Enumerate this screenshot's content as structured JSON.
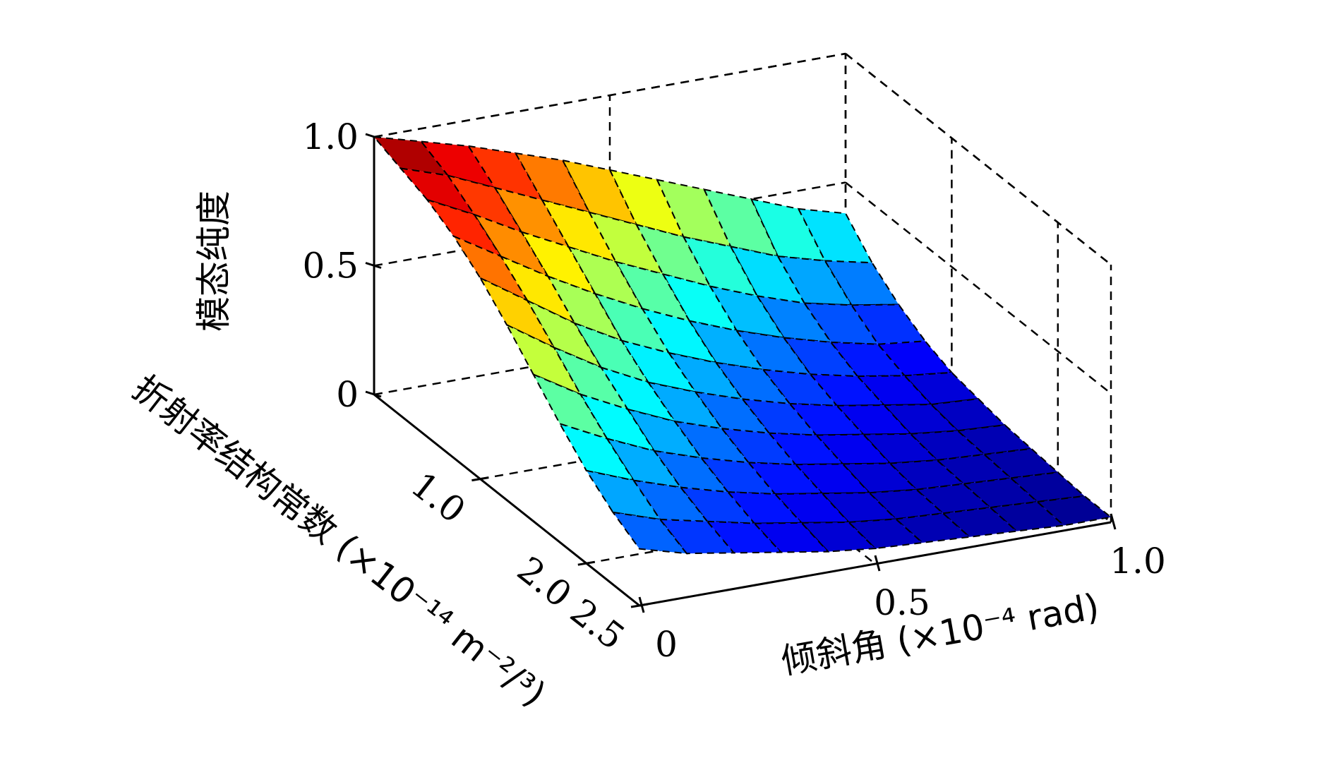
{
  "chart_data": {
    "type": "surface3d",
    "axes": {
      "x": {
        "label": "倾斜角 (×10⁻⁴ rad)",
        "range": [
          0,
          1.0
        ],
        "ticks": [
          0,
          0.5,
          1.0
        ],
        "tick_labels": [
          "0",
          "0.5",
          "1.0"
        ]
      },
      "y": {
        "label": "折射率结构常数 (×10⁻¹⁴ m⁻²/³)",
        "range": [
          0,
          2.5
        ],
        "ticks": [
          1.0,
          2.0,
          2.5
        ],
        "tick_labels": [
          "1.0",
          "2.0",
          "2.5"
        ]
      },
      "z": {
        "label": "模态纯度",
        "range": [
          0,
          1.0
        ],
        "ticks": [
          0,
          0.5,
          1.0
        ],
        "tick_labels": [
          "0",
          "0.5",
          "1.0"
        ]
      }
    },
    "grid": true,
    "colormap": "jet",
    "x": [
      0,
      0.1,
      0.2,
      0.3,
      0.4,
      0.5,
      0.6,
      0.7,
      0.8,
      0.9,
      1.0
    ],
    "y": [
      0,
      0.25,
      0.5,
      0.75,
      1.0,
      1.25,
      1.5,
      1.75,
      2.0,
      2.25,
      2.5
    ],
    "z": [
      [
        1.0,
        0.95,
        0.9,
        0.84,
        0.78,
        0.71,
        0.64,
        0.57,
        0.5,
        0.43,
        0.38
      ],
      [
        0.96,
        0.9,
        0.82,
        0.74,
        0.66,
        0.58,
        0.5,
        0.43,
        0.36,
        0.31,
        0.27
      ],
      [
        0.92,
        0.83,
        0.73,
        0.64,
        0.55,
        0.47,
        0.39,
        0.32,
        0.26,
        0.22,
        0.19
      ],
      [
        0.86,
        0.75,
        0.64,
        0.54,
        0.45,
        0.37,
        0.3,
        0.24,
        0.19,
        0.15,
        0.13
      ],
      [
        0.78,
        0.66,
        0.54,
        0.44,
        0.36,
        0.29,
        0.23,
        0.18,
        0.14,
        0.11,
        0.09
      ],
      [
        0.68,
        0.56,
        0.45,
        0.36,
        0.29,
        0.23,
        0.18,
        0.14,
        0.11,
        0.08,
        0.07
      ],
      [
        0.57,
        0.46,
        0.37,
        0.29,
        0.23,
        0.18,
        0.14,
        0.11,
        0.08,
        0.06,
        0.05
      ],
      [
        0.46,
        0.37,
        0.29,
        0.23,
        0.18,
        0.14,
        0.11,
        0.08,
        0.06,
        0.05,
        0.04
      ],
      [
        0.36,
        0.29,
        0.23,
        0.18,
        0.14,
        0.11,
        0.08,
        0.06,
        0.05,
        0.04,
        0.03
      ],
      [
        0.28,
        0.22,
        0.18,
        0.14,
        0.11,
        0.08,
        0.06,
        0.05,
        0.04,
        0.03,
        0.02
      ],
      [
        0.22,
        0.17,
        0.14,
        0.11,
        0.08,
        0.06,
        0.05,
        0.04,
        0.03,
        0.02,
        0.02
      ]
    ]
  }
}
